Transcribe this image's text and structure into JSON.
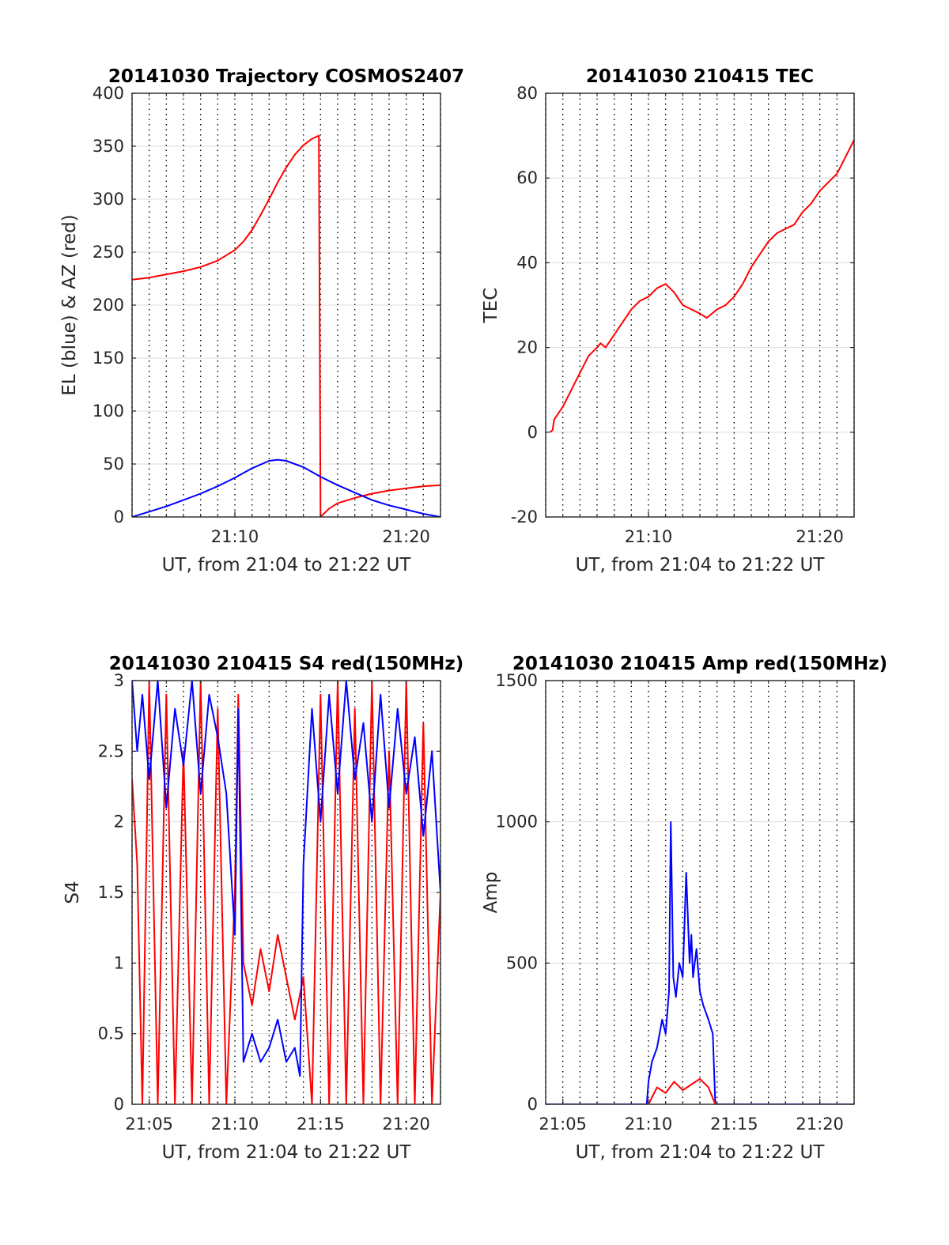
{
  "chart_data": [
    {
      "type": "line",
      "title": "20141030 Trajectory COSMOS2407",
      "xlabel": "UT, from 21:04 to 21:22 UT",
      "ylabel": "EL (blue) & AZ (red)",
      "xlim": [
        4,
        22
      ],
      "ylim": [
        0,
        400
      ],
      "yticks": [
        0,
        50,
        100,
        150,
        200,
        250,
        300,
        350,
        400
      ],
      "ytick_labels": [
        "0",
        "50",
        "100",
        "150",
        "200",
        "250",
        "300",
        "350",
        "400"
      ],
      "xticks": [
        10,
        20
      ],
      "xtick_labels": [
        "21:10",
        "21:20"
      ],
      "grid": true,
      "series": [
        {
          "color": "#ff0000",
          "x": [
            4,
            5,
            6,
            7,
            8,
            9,
            10,
            10.5,
            11,
            11.5,
            12,
            12.5,
            13,
            13.5,
            14,
            14.5,
            14.9,
            15,
            15.5,
            16,
            17,
            18,
            19,
            20,
            21,
            22
          ],
          "y": [
            224,
            226,
            229,
            232,
            236,
            242,
            252,
            260,
            271,
            285,
            300,
            316,
            330,
            342,
            351,
            357,
            360,
            0,
            8,
            13,
            18,
            22,
            25,
            27,
            29,
            30
          ]
        },
        {
          "color": "#0000ff",
          "x": [
            4,
            5,
            6,
            7,
            8,
            9,
            10,
            11,
            12,
            12.5,
            13,
            14,
            15,
            16,
            17,
            18,
            19,
            20,
            21,
            22
          ],
          "y": [
            0,
            5,
            10,
            16,
            22,
            29,
            37,
            46,
            53,
            54,
            53,
            47,
            38,
            30,
            23,
            16,
            11,
            7,
            3,
            0
          ]
        }
      ]
    },
    {
      "type": "line",
      "title": "20141030 210415 TEC",
      "xlabel": "UT, from 21:04 to 21:22 UT",
      "ylabel": "TEC",
      "xlim": [
        4,
        22
      ],
      "ylim": [
        -20,
        80
      ],
      "yticks": [
        -20,
        0,
        20,
        40,
        60,
        80
      ],
      "ytick_labels": [
        "-20",
        "0",
        "20",
        "40",
        "60",
        "80"
      ],
      "xticks": [
        10,
        20
      ],
      "xtick_labels": [
        "21:10",
        "21:20"
      ],
      "grid": true,
      "series": [
        {
          "color": "#ff0000",
          "x": [
            4.25,
            4.4,
            4.5,
            5,
            5.5,
            6,
            6.5,
            7,
            7.2,
            7.5,
            8,
            8.5,
            9,
            9.5,
            10,
            10.5,
            11,
            11.5,
            12,
            12.5,
            13,
            13.4,
            14,
            14.5,
            15,
            15.5,
            16,
            16.5,
            17,
            17.5,
            18,
            18.5,
            19,
            19.5,
            20,
            20.5,
            21,
            21.5,
            22
          ],
          "y": [
            0,
            0.5,
            3,
            6,
            10,
            14,
            18,
            20,
            21,
            20,
            23,
            26,
            29,
            31,
            32,
            34,
            35,
            33,
            30,
            29,
            28,
            27,
            29,
            30,
            32,
            35,
            39,
            42,
            45,
            47,
            48,
            49,
            52,
            54,
            57,
            59,
            61,
            65,
            69
          ]
        }
      ]
    },
    {
      "type": "line",
      "title": "20141030 210415 S4 red(150MHz)",
      "xlabel": "UT, from 21:04 to 21:22 UT",
      "ylabel": "S4",
      "xlim": [
        4,
        22
      ],
      "ylim": [
        0,
        3
      ],
      "yticks": [
        0,
        0.5,
        1,
        1.5,
        2,
        2.5,
        3
      ],
      "ytick_labels": [
        "0",
        "0.5",
        "1",
        "1.5",
        "2",
        "2.5",
        "3"
      ],
      "xticks": [
        5,
        10,
        15,
        20
      ],
      "xtick_labels": [
        "21:05",
        "21:10",
        "21:15",
        "21:20"
      ],
      "grid": true,
      "series": [
        {
          "color": "#ff0000",
          "x": [
            4,
            4.3,
            4.6,
            5,
            5.5,
            6,
            6.5,
            7,
            7.5,
            8,
            8.5,
            9,
            9.5,
            10,
            10.2,
            10.5,
            11,
            11.5,
            12,
            12.5,
            13,
            13.5,
            14,
            14.5,
            15,
            15.5,
            16,
            16.5,
            17,
            17.5,
            18,
            18.5,
            19,
            19.5,
            20,
            20.5,
            21,
            21.5,
            22
          ],
          "y": [
            2.3,
            1.7,
            0,
            3,
            0,
            2.9,
            0,
            2.5,
            0,
            3,
            0,
            2.8,
            0,
            1.5,
            2.9,
            1.0,
            0.7,
            1.1,
            0.8,
            1.2,
            0.9,
            0.6,
            0.9,
            0,
            2.9,
            0,
            3,
            0,
            2.8,
            0,
            3,
            0,
            2.5,
            0,
            3,
            0,
            2.7,
            0,
            1.5
          ]
        },
        {
          "color": "#0000ff",
          "x": [
            4,
            4.3,
            4.6,
            5,
            5.5,
            6,
            6.5,
            7,
            7.5,
            8,
            8.5,
            9,
            9.5,
            10,
            10.2,
            10.5,
            11,
            11.5,
            12,
            12.5,
            13,
            13.5,
            13.8,
            14,
            14.5,
            15,
            15.5,
            16,
            16.5,
            17,
            17.5,
            18,
            18.5,
            19,
            19.5,
            20,
            20.5,
            21,
            21.5,
            22
          ],
          "y": [
            3,
            2.5,
            2.9,
            2.3,
            3,
            2.1,
            2.8,
            2.4,
            3,
            2.2,
            2.9,
            2.6,
            2.2,
            1.2,
            2.8,
            0.3,
            0.5,
            0.3,
            0.4,
            0.6,
            0.3,
            0.4,
            0.2,
            1.7,
            2.8,
            2.0,
            2.9,
            2.2,
            3,
            2.3,
            2.7,
            2.0,
            2.9,
            2.1,
            2.8,
            2.2,
            2.6,
            1.9,
            2.5,
            1.5
          ]
        }
      ]
    },
    {
      "type": "line",
      "title": "20141030 210415 Amp red(150MHz)",
      "xlabel": "UT, from 21:04 to 21:22 UT",
      "ylabel": "Amp",
      "xlim": [
        4,
        22
      ],
      "ylim": [
        0,
        1500
      ],
      "yticks": [
        0,
        500,
        1000,
        1500
      ],
      "ytick_labels": [
        "0",
        "500",
        "1000",
        "1500"
      ],
      "xticks": [
        5,
        10,
        15,
        20
      ],
      "xtick_labels": [
        "21:05",
        "21:10",
        "21:15",
        "21:20"
      ],
      "grid": true,
      "series": [
        {
          "color": "#0000ff",
          "x": [
            4,
            9.9,
            10.0,
            10.2,
            10.5,
            10.8,
            11.0,
            11.2,
            11.3,
            11.45,
            11.6,
            11.8,
            12.0,
            12.2,
            12.4,
            12.5,
            12.6,
            12.8,
            13.0,
            13.2,
            13.5,
            13.75,
            13.9,
            22
          ],
          "y": [
            0,
            0,
            80,
            150,
            200,
            300,
            250,
            400,
            1000,
            450,
            380,
            500,
            450,
            820,
            500,
            600,
            450,
            550,
            400,
            350,
            300,
            250,
            0,
            0
          ]
        },
        {
          "color": "#ff0000",
          "x": [
            10.0,
            10.5,
            11.0,
            11.5,
            12.0,
            12.5,
            13.0,
            13.5,
            13.9
          ],
          "y": [
            0,
            60,
            40,
            80,
            50,
            70,
            90,
            60,
            0
          ]
        }
      ]
    }
  ]
}
